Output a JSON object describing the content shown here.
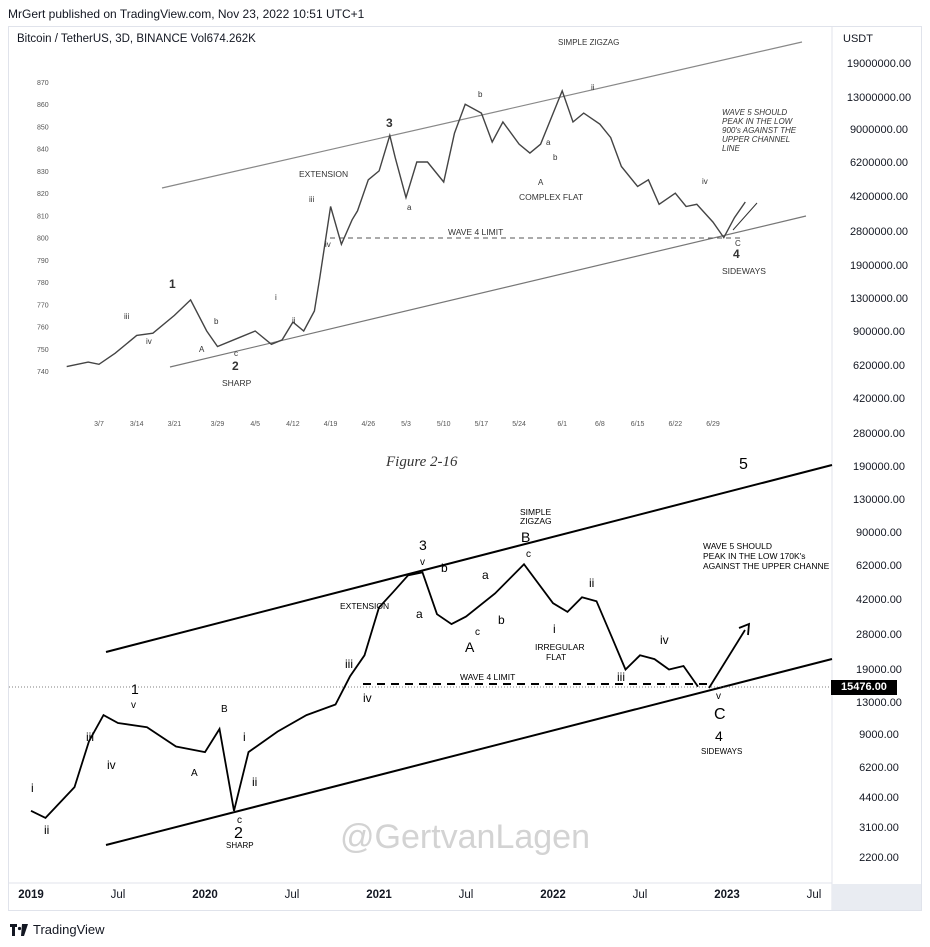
{
  "header": {
    "published": "MrGert published on TradingView.com, Nov 23, 2022 10:51 UTC+1"
  },
  "symbol": {
    "label": "Bitcoin / TetherUS, 3D, BINANCE  Vol674.262K"
  },
  "axis": {
    "unit": "USDT",
    "current_price": "15476.00"
  },
  "figure_caption": "Figure 2-16",
  "watermark": "@GertvanLagen",
  "footer": {
    "brand": "TradingView"
  },
  "colors": {
    "line": "#000000",
    "tag_bg": "#000000",
    "grid_axis": "#e0e3eb",
    "old_chart_line": "#555555"
  },
  "chart_data": [
    {
      "type": "line",
      "note_printed": "Figure 2-16",
      "x_tick_labels": [
        "3/7",
        "3/14",
        "3/21",
        "3/29",
        "4/5",
        "4/12",
        "4/19",
        "4/26",
        "5/3",
        "5/10",
        "5/17",
        "5/24",
        "6/1",
        "6/8",
        "6/15",
        "6/22",
        "6/29"
      ],
      "y_tick_labels": [
        "870",
        "860",
        "850",
        "840",
        "830",
        "820",
        "810",
        "800",
        "790",
        "780",
        "770",
        "760",
        "750",
        "740"
      ],
      "x": [
        "3/1",
        "3/5",
        "3/7",
        "3/10",
        "3/14",
        "3/17",
        "3/21",
        "3/24",
        "3/27",
        "3/29",
        "4/2",
        "4/5",
        "4/8",
        "4/10",
        "4/12",
        "4/14",
        "4/16",
        "4/17",
        "4/19",
        "4/21",
        "4/23",
        "4/24",
        "4/26",
        "4/28",
        "4/30",
        "5/1",
        "5/3",
        "5/5",
        "5/7",
        "5/10",
        "5/12",
        "5/14",
        "5/17",
        "5/19",
        "5/21",
        "5/24",
        "5/26",
        "5/28",
        "6/1",
        "6/3",
        "6/5",
        "6/8",
        "6/10",
        "6/12",
        "6/15",
        "6/17",
        "6/19",
        "6/22",
        "6/24",
        "6/26",
        "6/29",
        "7/1",
        "7/3",
        "7/5"
      ],
      "y": [
        742,
        744,
        743,
        748,
        756,
        757,
        765,
        772,
        758,
        751,
        755,
        758,
        752,
        754,
        762,
        758,
        767,
        782,
        814,
        797,
        808,
        812,
        826,
        830,
        846,
        836,
        818,
        834,
        834,
        825,
        847,
        860,
        856,
        843,
        852,
        842,
        838,
        842,
        866,
        852,
        856,
        851,
        845,
        832,
        823,
        826,
        815,
        820,
        814,
        815,
        807,
        800,
        809,
        816
      ],
      "wave_labels": [
        "1",
        "2",
        "3",
        "4",
        "A",
        "B",
        "C",
        "i",
        "ii",
        "iii",
        "iv",
        "v",
        "a",
        "b",
        "c"
      ],
      "annotations": [
        "SIMPLE ZIGZAG",
        "EXTENSION",
        "COMPLEX FLAT",
        "WAVE 4 LIMIT",
        "SIDEWAYS",
        "SHARP",
        "WAVE 5 SHOULD PEAK IN THE LOW 900's AGAINST THE UPPER CHANNEL LINE"
      ]
    },
    {
      "type": "line",
      "x_tick_labels": [
        "2019",
        "Jul",
        "2020",
        "Jul",
        "2021",
        "Jul",
        "2022",
        "Jul",
        "2023",
        "Jul"
      ],
      "y_tick_labels": [
        "19000000.00",
        "13000000.00",
        "9000000.00",
        "6200000.00",
        "4200000.00",
        "2800000.00",
        "1900000.00",
        "1300000.00",
        "900000.00",
        "620000.00",
        "420000.00",
        "280000.00",
        "190000.00",
        "130000.00",
        "90000.00",
        "62000.00",
        "42000.00",
        "28000.00",
        "19000.00",
        "13000.00",
        "9000.00",
        "6200.00",
        "4400.00",
        "3100.00",
        "2200.00"
      ],
      "log_scale": true,
      "x": [
        "2019-01",
        "2019-02",
        "2019-04",
        "2019-05",
        "2019-06",
        "2019-07",
        "2019-09",
        "2019-11",
        "2020-01",
        "2020-02",
        "2020-03",
        "2020-04",
        "2020-06",
        "2020-08",
        "2020-10",
        "2020-11",
        "2020-12",
        "2021-01",
        "2021-02",
        "2021-03",
        "2021-04",
        "2021-05",
        "2021-06",
        "2021-07",
        "2021-09",
        "2021-11",
        "2022-01",
        "2022-02",
        "2022-03",
        "2022-04",
        "2022-05",
        "2022-06",
        "2022-07",
        "2022-08",
        "2022-09",
        "2022-10",
        "2022-11"
      ],
      "y": [
        3800,
        3500,
        5000,
        8500,
        11500,
        10500,
        10000,
        8000,
        7500,
        9800,
        3800,
        7500,
        9500,
        11500,
        13000,
        18000,
        23000,
        40000,
        48000,
        58000,
        60000,
        37000,
        33000,
        36000,
        47000,
        66000,
        42000,
        38000,
        45000,
        43000,
        29000,
        19500,
        23000,
        22000,
        19500,
        20300,
        16000
      ],
      "current_price": 15476,
      "wave_labels": [
        "1",
        "2",
        "3",
        "4",
        "5",
        "A",
        "B",
        "C",
        "i",
        "ii",
        "iii",
        "iv",
        "v",
        "a",
        "b",
        "c"
      ],
      "annotations": [
        "SIMPLE ZIGZAG",
        "EXTENSION",
        "IRREGULAR FLAT",
        "WAVE 4 LIMIT",
        "SIDEWAYS",
        "SHARP",
        "WAVE 5 SHOULD PEAK IN THE LOW 170K's AGAINST THE UPPER CHANNE"
      ]
    }
  ]
}
